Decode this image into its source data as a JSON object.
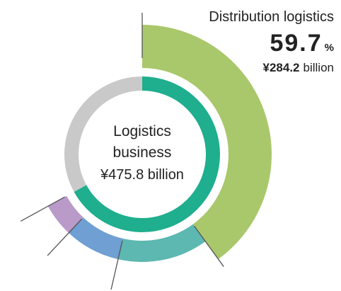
{
  "chart_data": {
    "type": "donut",
    "center_label": [
      "Logistics",
      "business",
      "¥475.8 billion"
    ],
    "inner": {
      "values": [
        67,
        33
      ],
      "colors": [
        "#1fae8e",
        "#c9c9c9"
      ]
    },
    "outer": {
      "values": [
        59.7,
        20.3,
        12.5,
        7.5
      ],
      "colors": [
        "#a9c86b",
        "#5cb8b1",
        "#6f9fd3",
        "#b99ac9"
      ]
    },
    "callout": {
      "name": "Distribution logistics",
      "unit": "%",
      "amount_label": "¥284.2",
      "amount_unit": "billion"
    }
  }
}
